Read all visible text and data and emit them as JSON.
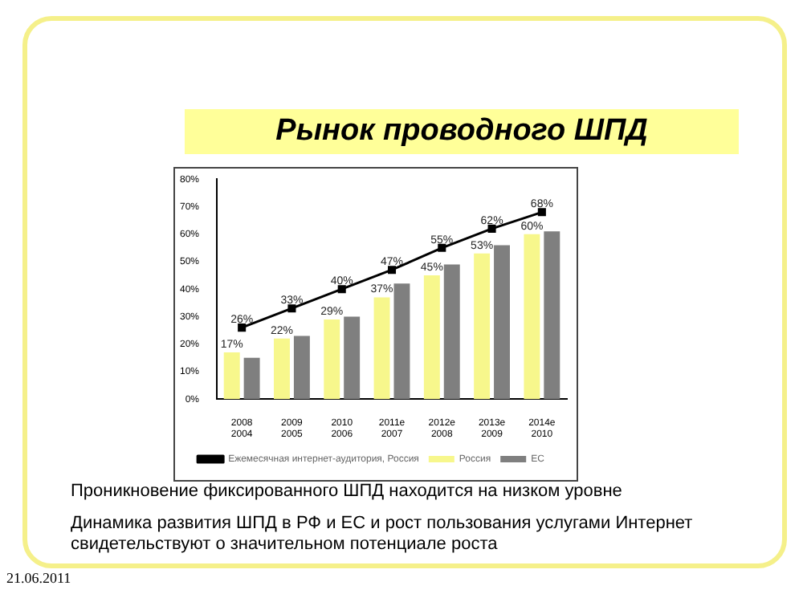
{
  "chart_data": {
    "type": "bar",
    "title": "Рынок проводного ШПД",
    "categories": [
      "2008\n2004",
      "2009\n2005",
      "2010\n2006",
      "2011е\n2007",
      "2012е\n2008",
      "2013е\n2009",
      "2014е\n2010"
    ],
    "series": [
      {
        "name": "Россия",
        "color": "#f7f78c",
        "values": [
          17,
          22,
          29,
          37,
          45,
          53,
          60
        ],
        "value_labels": [
          "17%",
          "22%",
          "29%",
          "37%",
          "45%",
          "53%",
          "60%"
        ]
      },
      {
        "name": "ЕС",
        "color": "#7f7f7f",
        "values": [
          15,
          23,
          30,
          42,
          49,
          56,
          61
        ]
      },
      {
        "name": "Ежемесячная интернет-аудитория, Россия",
        "type": "line",
        "color": "#000000",
        "marker": "square",
        "values": [
          26,
          33,
          40,
          47,
          55,
          62,
          68
        ],
        "value_labels": [
          "26%",
          "33%",
          "40%",
          "47%",
          "55%",
          "62%",
          "68%"
        ]
      }
    ],
    "ylim": [
      0,
      80
    ],
    "yticks": [
      {
        "value": 0,
        "label": "0%"
      },
      {
        "value": 10,
        "label": "10%"
      },
      {
        "value": 20,
        "label": "20%"
      },
      {
        "value": 30,
        "label": "30%"
      },
      {
        "value": 40,
        "label": "40%"
      },
      {
        "value": 50,
        "label": "50%"
      },
      {
        "value": 60,
        "label": "60%"
      },
      {
        "value": 70,
        "label": "70%"
      },
      {
        "value": 80,
        "label": "80%"
      }
    ],
    "grid": false,
    "legend": "bottom",
    "annotations": [
      "Проникновение фиксированного ШПД находится на низком уровне",
      "Динамика развития ШПД в РФ и ЕС и рост пользования услугами Интернет свидетельствуют о значительном потенциале роста",
      "21.06.2011"
    ]
  }
}
